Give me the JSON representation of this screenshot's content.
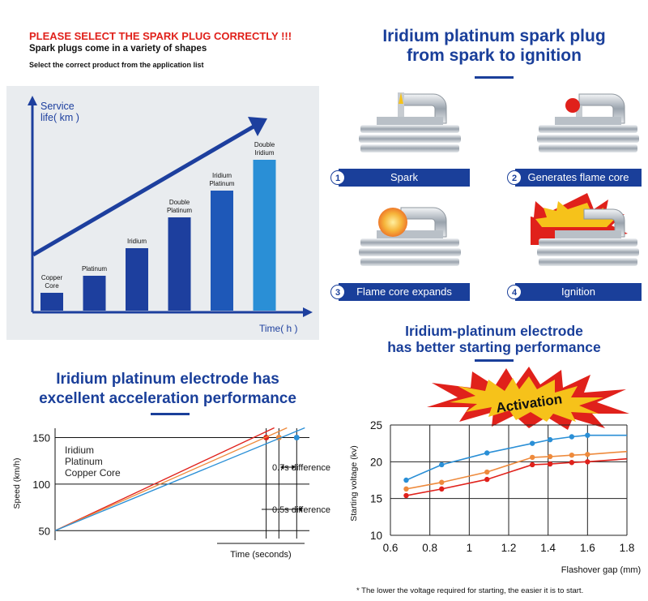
{
  "top_left": {
    "warning": "PLEASE SELECT THE SPARK PLUG CORRECTLY !!!",
    "subtitle": "Spark plugs come in a variety of shapes",
    "note": "Select the correct product from the application list"
  },
  "ignition": {
    "title_line1": "Iridium platinum spark plug",
    "title_line2": "from spark to ignition",
    "stages": [
      {
        "num": "1",
        "label": "Spark"
      },
      {
        "num": "2",
        "label": "Generates flame core"
      },
      {
        "num": "3",
        "label": "Flame core expands"
      },
      {
        "num": "4",
        "label": "Ignition"
      }
    ]
  },
  "accel": {
    "title_line1": "Iridium platinum electrode has",
    "title_line2": "excellent acceleration performance"
  },
  "starting": {
    "title_line1": "Iridium-platinum electrode",
    "title_line2": "has better starting performance",
    "burst_label": "Activation"
  },
  "footnote": "* The lower the voltage required for starting, the easier it is to start.",
  "colors": {
    "blue_dark": "#1a3f9a",
    "red": "#e0211b",
    "orange": "#ee8a3c",
    "light_blue": "#2a8fd6"
  },
  "chart_data": [
    {
      "type": "bar",
      "title": "",
      "ylabel": "Service life( km )",
      "xlabel": "Time( h )",
      "categories": [
        "Copper Core",
        "Platinum",
        "Iridium",
        "Double Platinum",
        "Iridium Platinum",
        "Double Iridium"
      ],
      "values": [
        22,
        43,
        77,
        115,
        148,
        186
      ],
      "ylim": [
        0,
        230
      ],
      "colors": [
        "#1d3f9e",
        "#1d3f9e",
        "#1d3f9e",
        "#1d3f9e",
        "#1e58b8",
        "#2a8fd6"
      ],
      "trend_arrow": true,
      "grid": false
    },
    {
      "type": "line",
      "title": "",
      "ylabel": "Speed (km/h)",
      "xlabel": "Time (seconds)",
      "y_ticks": [
        50,
        100,
        150
      ],
      "ylim": [
        45,
        160
      ],
      "xlim": [
        0,
        10
      ],
      "series": [
        {
          "name": "Iridium",
          "color": "#e0211b",
          "x": [
            0,
            8.3
          ],
          "y": [
            50,
            150
          ]
        },
        {
          "name": "Platinum",
          "color": "#ee8a3c",
          "x": [
            0,
            8.8
          ],
          "y": [
            50,
            150
          ]
        },
        {
          "name": "Copper Core",
          "color": "#2a8fd6",
          "x": [
            0,
            9.5
          ],
          "y": [
            50,
            150
          ]
        }
      ],
      "annotations": [
        "0.7s difference",
        "0.5s difference"
      ],
      "grid": true
    },
    {
      "type": "line",
      "title": "",
      "ylabel": "Starting voltage (kv)",
      "xlabel": "Flashover gap (mm)",
      "x_ticks": [
        0.6,
        0.8,
        1,
        1.2,
        1.4,
        1.6,
        1.8
      ],
      "y_ticks": [
        10,
        15,
        20,
        25
      ],
      "xlim": [
        0.6,
        1.8
      ],
      "ylim": [
        10,
        25
      ],
      "series": [
        {
          "color": "#2a8fd6",
          "x": [
            0.68,
            0.86,
            1.09,
            1.32,
            1.41,
            1.52,
            1.6,
            1.8
          ],
          "y": [
            17.5,
            19.6,
            21.2,
            22.5,
            23.0,
            23.4,
            23.6,
            23.6
          ]
        },
        {
          "color": "#ee8a3c",
          "x": [
            0.68,
            0.86,
            1.09,
            1.32,
            1.41,
            1.52,
            1.6,
            1.8
          ],
          "y": [
            16.3,
            17.2,
            18.6,
            20.6,
            20.7,
            20.9,
            21.0,
            21.4
          ]
        },
        {
          "color": "#e0211b",
          "x": [
            0.68,
            0.86,
            1.09,
            1.32,
            1.41,
            1.52,
            1.6,
            1.8
          ],
          "y": [
            15.4,
            16.3,
            17.6,
            19.6,
            19.7,
            19.9,
            20.0,
            20.4
          ]
        }
      ],
      "grid": true
    }
  ]
}
